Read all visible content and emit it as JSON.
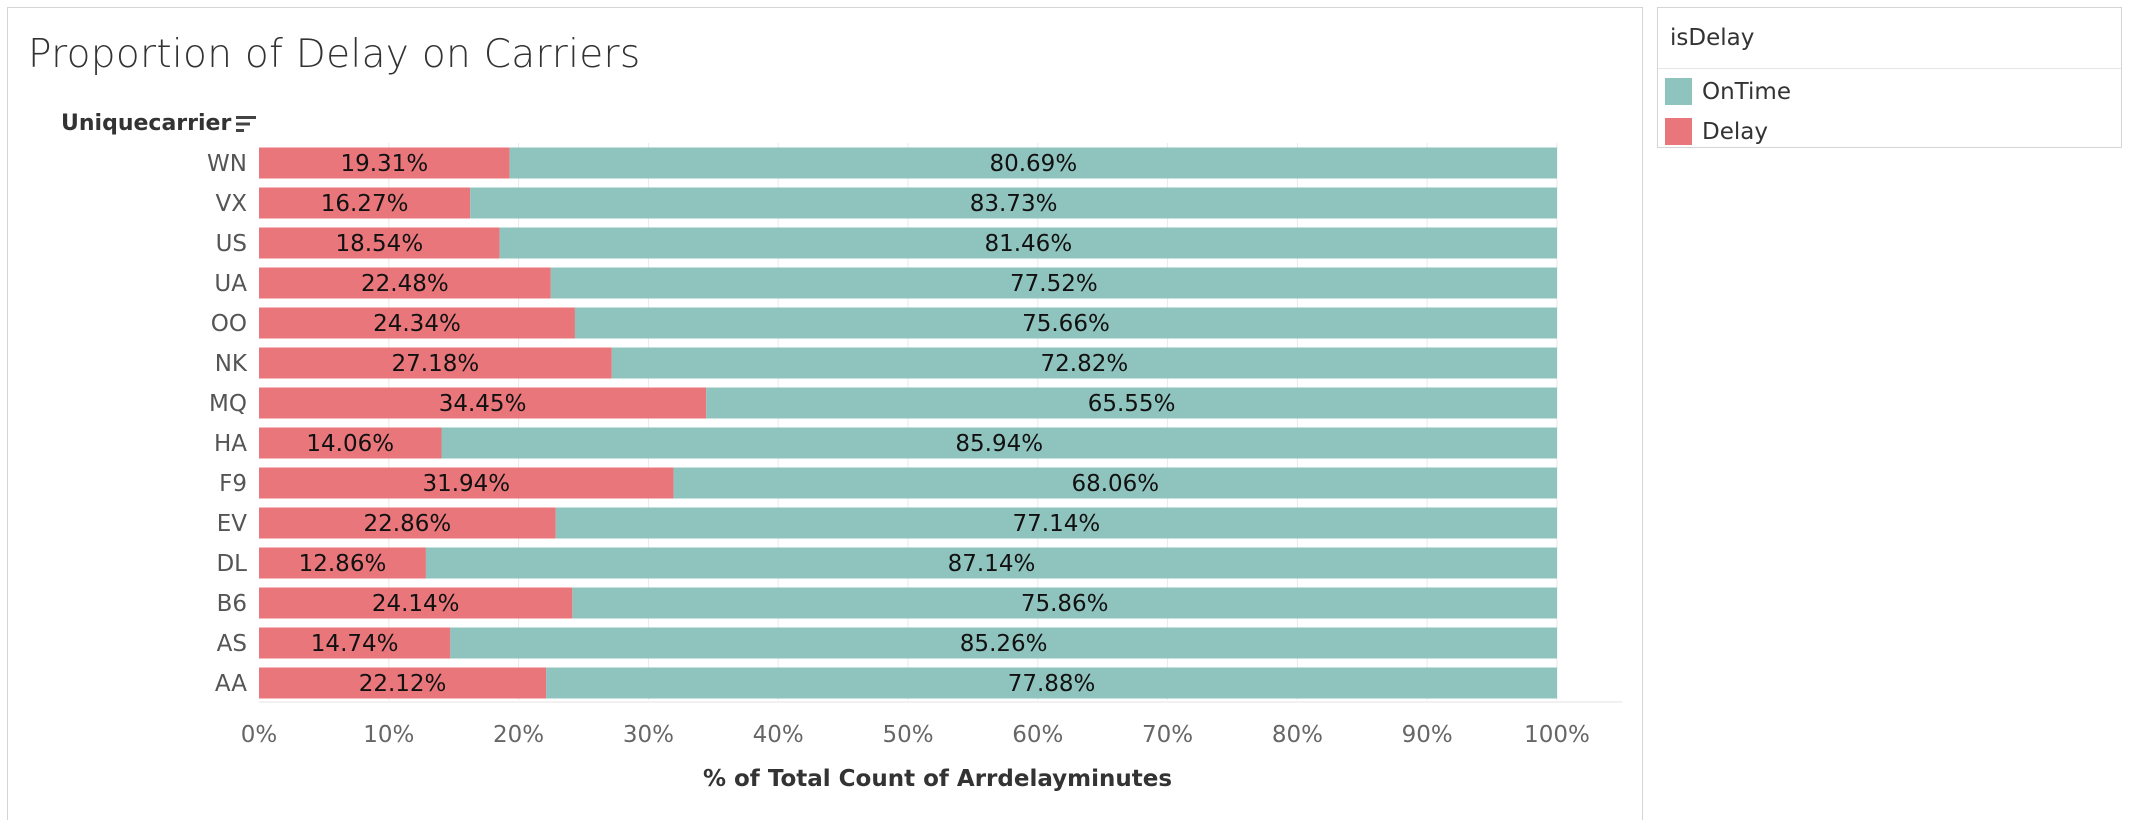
{
  "chart_data": {
    "type": "bar",
    "orientation": "horizontal",
    "stacked": true,
    "title": "Proportion of Delay on Carriers",
    "ylabel": "Uniquecarrier",
    "xlabel": "% of Total Count of Arrdelayminutes",
    "xlim": [
      0,
      100
    ],
    "x_ticks": [
      "0%",
      "10%",
      "20%",
      "30%",
      "40%",
      "50%",
      "60%",
      "70%",
      "80%",
      "90%",
      "100%"
    ],
    "grid": true,
    "categories": [
      "WN",
      "VX",
      "US",
      "UA",
      "OO",
      "NK",
      "MQ",
      "HA",
      "F9",
      "EV",
      "DL",
      "B6",
      "AS",
      "AA"
    ],
    "series": [
      {
        "name": "Delay",
        "color": "#e8767a",
        "values": [
          19.31,
          16.27,
          18.54,
          22.48,
          24.34,
          27.18,
          34.45,
          14.06,
          31.94,
          22.86,
          12.86,
          24.14,
          14.74,
          22.12
        ],
        "labels": [
          "19.31%",
          "16.27%",
          "18.54%",
          "22.48%",
          "24.34%",
          "27.18%",
          "34.45%",
          "14.06%",
          "31.94%",
          "22.86%",
          "12.86%",
          "24.14%",
          "14.74%",
          "22.12%"
        ]
      },
      {
        "name": "OnTime",
        "color": "#8fc3be",
        "values": [
          80.69,
          83.73,
          81.46,
          77.52,
          75.66,
          72.82,
          65.55,
          85.94,
          68.06,
          77.14,
          87.14,
          75.86,
          85.26,
          77.88
        ],
        "labels": [
          "80.69%",
          "83.73%",
          "81.46%",
          "77.52%",
          "75.66%",
          "72.82%",
          "65.55%",
          "85.94%",
          "68.06%",
          "77.14%",
          "87.14%",
          "75.86%",
          "85.26%",
          "77.88%"
        ]
      }
    ],
    "legend": {
      "title": "isDelay",
      "position": "right",
      "items": [
        {
          "label": "OnTime",
          "color": "#8fc3be"
        },
        {
          "label": "Delay",
          "color": "#e8767a"
        }
      ]
    }
  },
  "icons": {
    "sort": "sort-descending-icon"
  }
}
